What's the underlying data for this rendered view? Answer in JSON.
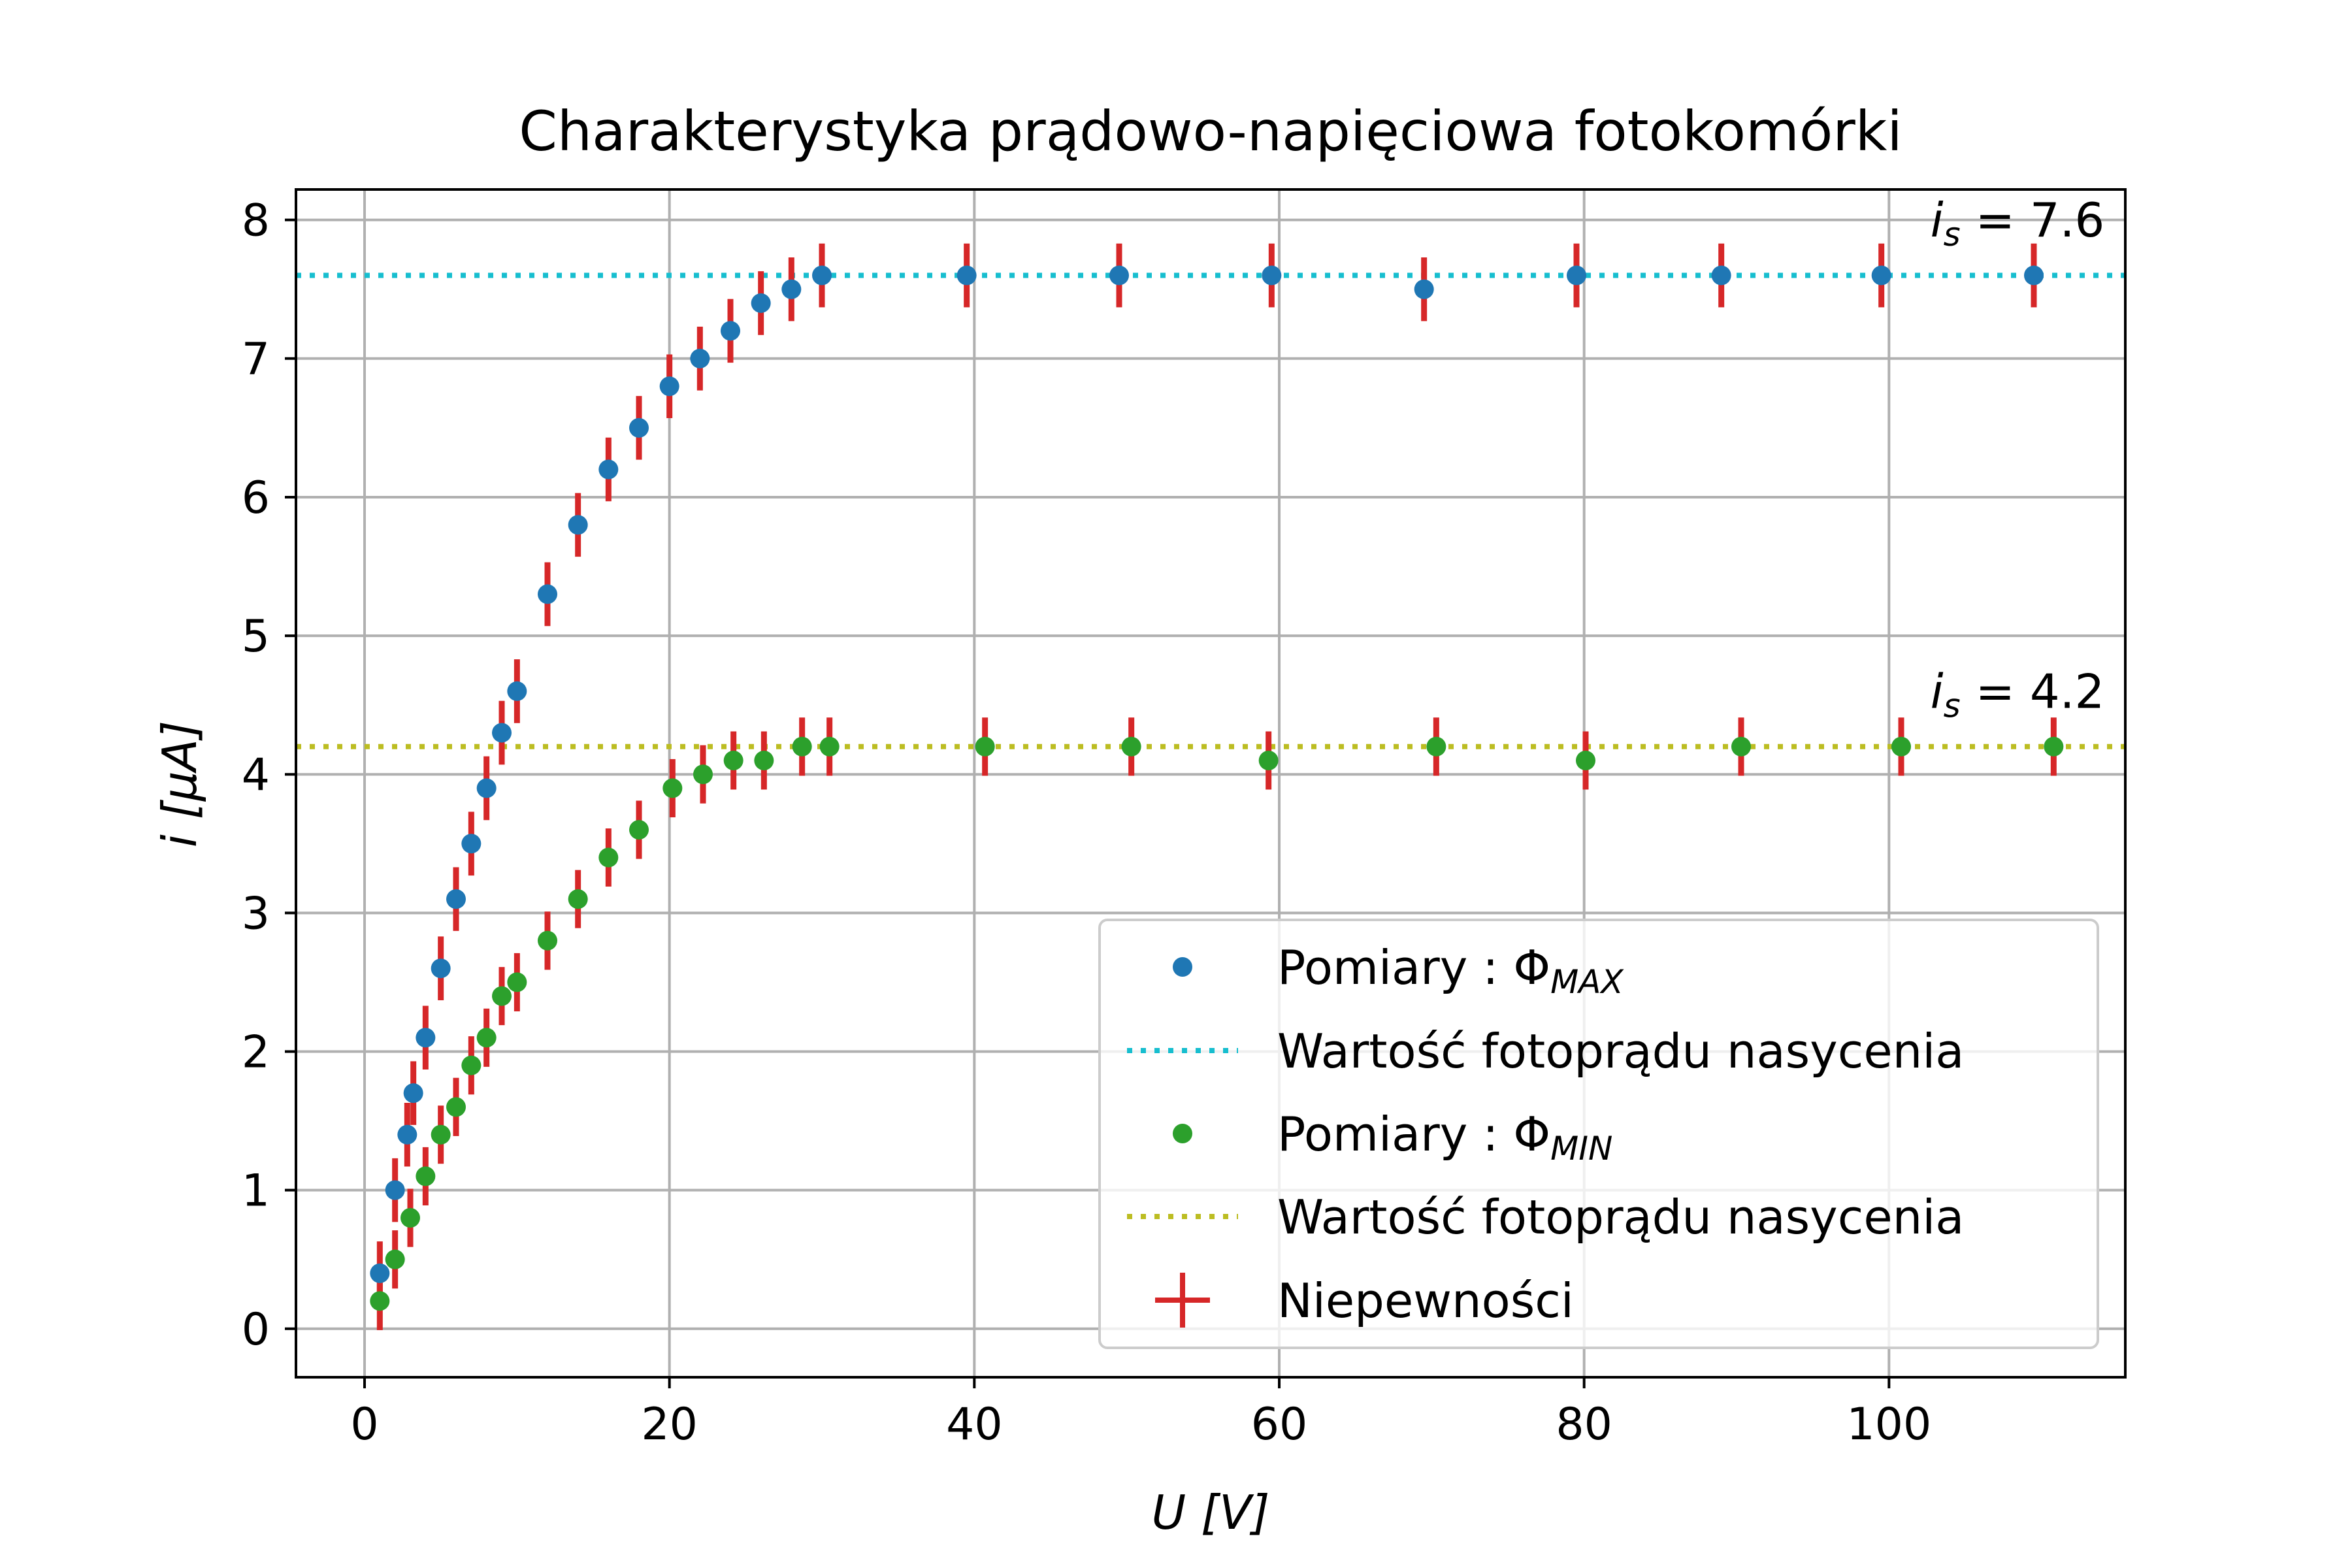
{
  "chart_data": {
    "type": "scatter",
    "title": "Charakterystyka prądowo-napięciowa fotokomórki",
    "xlabel": "U [V]",
    "ylabel": "i [μA]",
    "xlim": [
      -4.5,
      115.5
    ],
    "ylim": [
      -0.35,
      8.22
    ],
    "xticks": [
      0,
      20,
      40,
      60,
      80,
      100
    ],
    "yticks": [
      0,
      1,
      2,
      3,
      4,
      5,
      6,
      7,
      8
    ],
    "grid": true,
    "legend_position": "lower right",
    "colors": {
      "max_points": "#1f77b4",
      "max_saturation": "#17becf",
      "min_points": "#2ca02c",
      "min_saturation": "#bcbd22",
      "errorbars": "#d62728",
      "grid": "#b0b0b0"
    },
    "series": [
      {
        "name": "Pomiary : Φ_MAX",
        "label_main": "Pomiary : Φ",
        "label_sub": "MAX",
        "kind": "points",
        "color": "#1f77b4",
        "x": [
          1,
          2,
          2.8,
          3.2,
          4,
          5,
          6,
          7,
          8,
          9,
          10,
          12,
          14,
          16,
          18,
          20,
          22,
          24,
          26,
          28,
          30,
          39.5,
          49.5,
          59.5,
          69.5,
          79.5,
          89,
          99.5,
          109.5
        ],
        "y": [
          0.4,
          1.0,
          1.4,
          1.7,
          2.1,
          2.6,
          3.1,
          3.5,
          3.9,
          4.3,
          4.6,
          5.3,
          5.8,
          6.2,
          6.5,
          6.8,
          7.0,
          7.2,
          7.4,
          7.5,
          7.6,
          7.6,
          7.6,
          7.6,
          7.5,
          7.6,
          7.6,
          7.6,
          7.6
        ],
        "yerr": 0.23
      },
      {
        "name": "Wartość fotoprądu nasycenia",
        "kind": "hline",
        "color": "#17becf",
        "y": 7.6
      },
      {
        "name": "Pomiary : Φ_MIN",
        "label_main": "Pomiary : Φ",
        "label_sub": "MIN",
        "kind": "points",
        "color": "#2ca02c",
        "x": [
          1,
          2,
          3,
          4,
          5,
          6,
          7,
          8,
          9,
          10,
          12,
          14,
          16,
          18,
          20.2,
          22.2,
          24.2,
          26.2,
          28.7,
          30.5,
          40.7,
          50.3,
          59.3,
          70.3,
          80.1,
          90.3,
          100.8,
          110.8
        ],
        "y": [
          0.2,
          0.5,
          0.8,
          1.1,
          1.4,
          1.6,
          1.9,
          2.1,
          2.4,
          2.5,
          2.8,
          3.1,
          3.4,
          3.6,
          3.9,
          4.0,
          4.1,
          4.1,
          4.2,
          4.2,
          4.2,
          4.2,
          4.1,
          4.2,
          4.1,
          4.2,
          4.2,
          4.2
        ],
        "yerr": 0.21
      },
      {
        "name": "Wartość fotoprądu nasycenia",
        "kind": "hline",
        "color": "#bcbd22",
        "y": 4.2
      },
      {
        "name": "Niepewności",
        "kind": "errorbar-legend",
        "color": "#d62728"
      }
    ],
    "annotations": [
      {
        "text": "= 7.6",
        "sym": "i",
        "sub": "s",
        "x": 115,
        "y": 7.88
      },
      {
        "text": "= 4.2",
        "sym": "i",
        "sub": "s",
        "x": 115,
        "y": 4.48
      }
    ]
  }
}
